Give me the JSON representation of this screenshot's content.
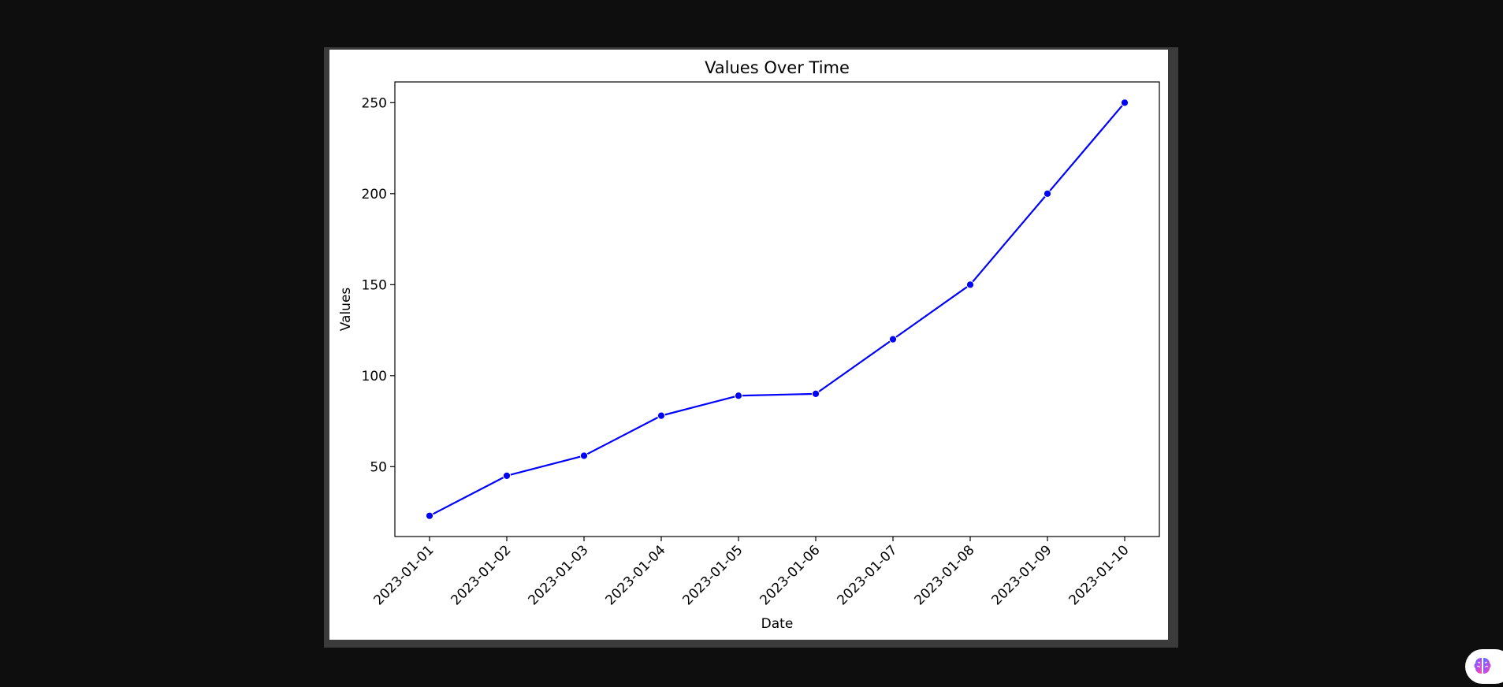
{
  "chart_data": {
    "type": "line",
    "title": "Values Over Time",
    "xlabel": "Date",
    "ylabel": "Values",
    "x": [
      "2023-01-01",
      "2023-01-02",
      "2023-01-03",
      "2023-01-04",
      "2023-01-05",
      "2023-01-06",
      "2023-01-07",
      "2023-01-08",
      "2023-01-09",
      "2023-01-10"
    ],
    "series": [
      {
        "values": [
          23,
          45,
          56,
          78,
          89,
          90,
          120,
          150,
          200,
          250
        ],
        "color": "#0000ff",
        "marker": "circle"
      }
    ],
    "ylim": [
      11.6,
      261.4
    ],
    "yticks": [
      50,
      100,
      150,
      200,
      250
    ],
    "grid": false,
    "legend": "none",
    "x_tick_rotation_deg": 45
  },
  "ui": {
    "background_color": "#0e0e0e",
    "figure_background": "#ffffff",
    "assistant_button_icon": "brain-icon"
  }
}
